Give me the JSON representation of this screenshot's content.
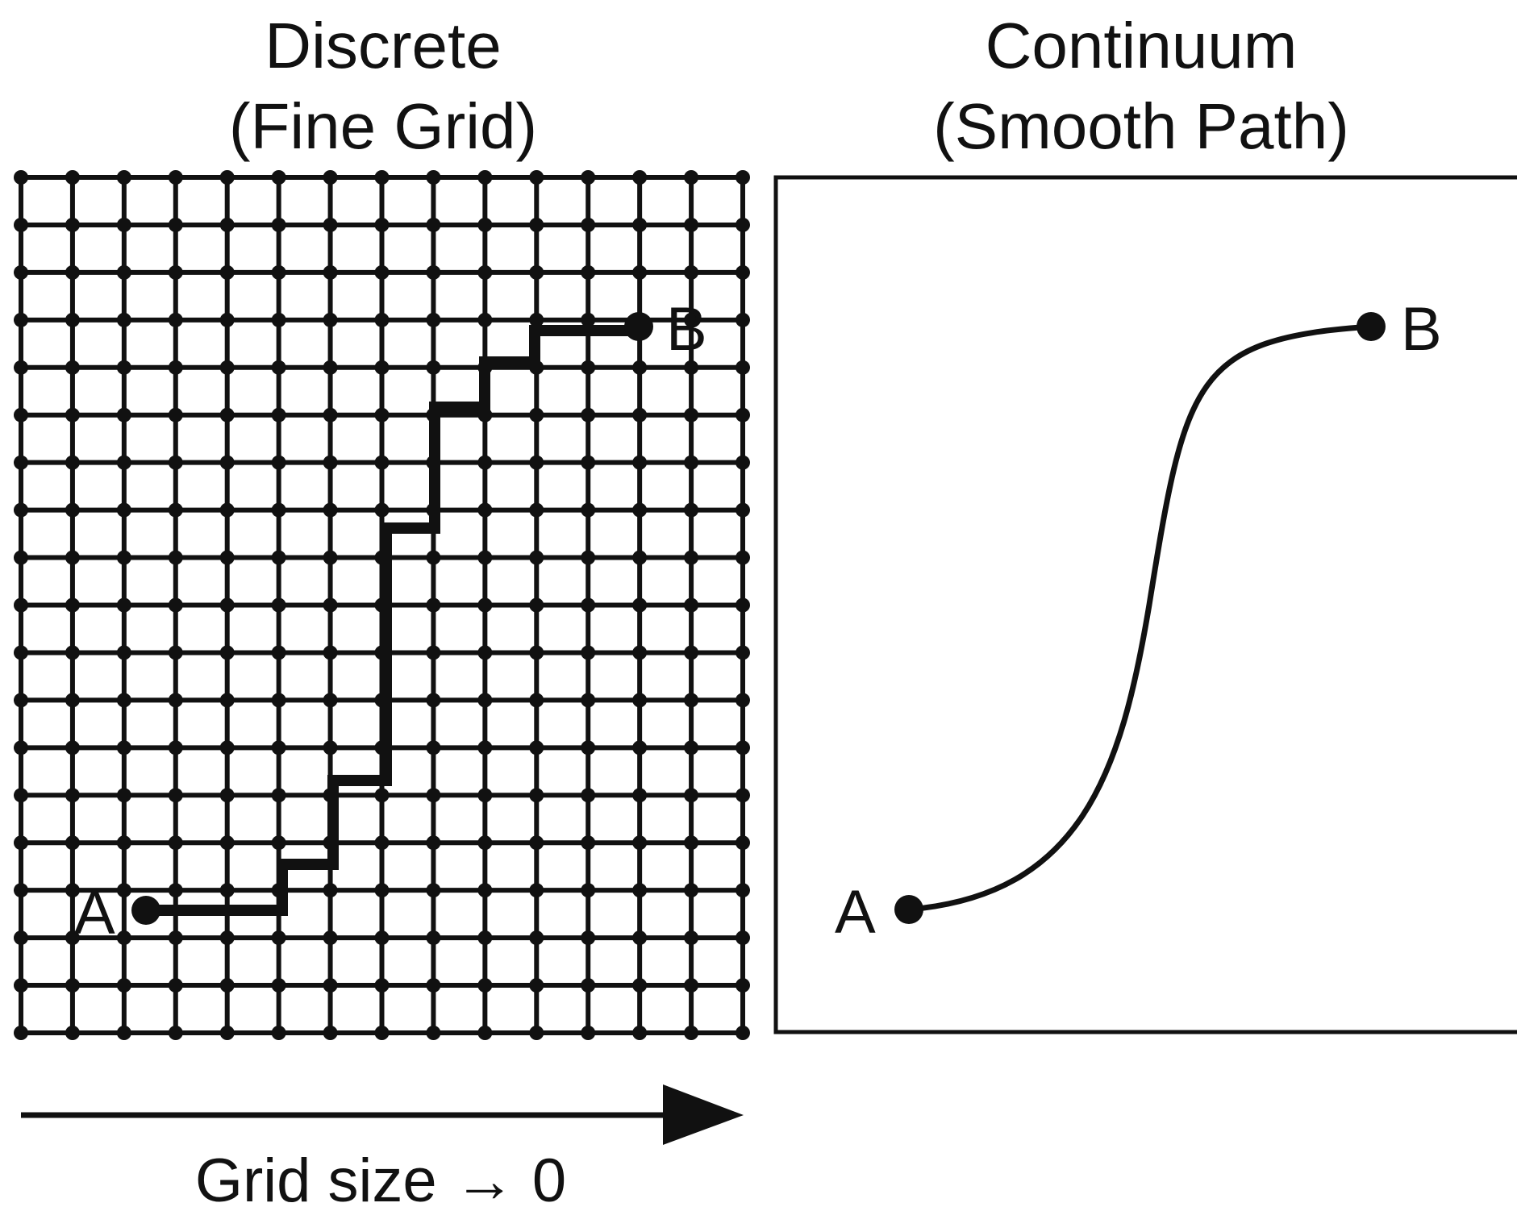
{
  "panels": {
    "discrete": {
      "title_line1": "Discrete",
      "title_line2": "(Fine Grid)",
      "start_label": "A",
      "end_label": "B"
    },
    "continuum": {
      "title_line1": "Continuum",
      "title_line2": "(Smooth Path)",
      "start_label": "A",
      "end_label": "B"
    }
  },
  "arrow": {
    "caption": "Grid size → 0"
  }
}
